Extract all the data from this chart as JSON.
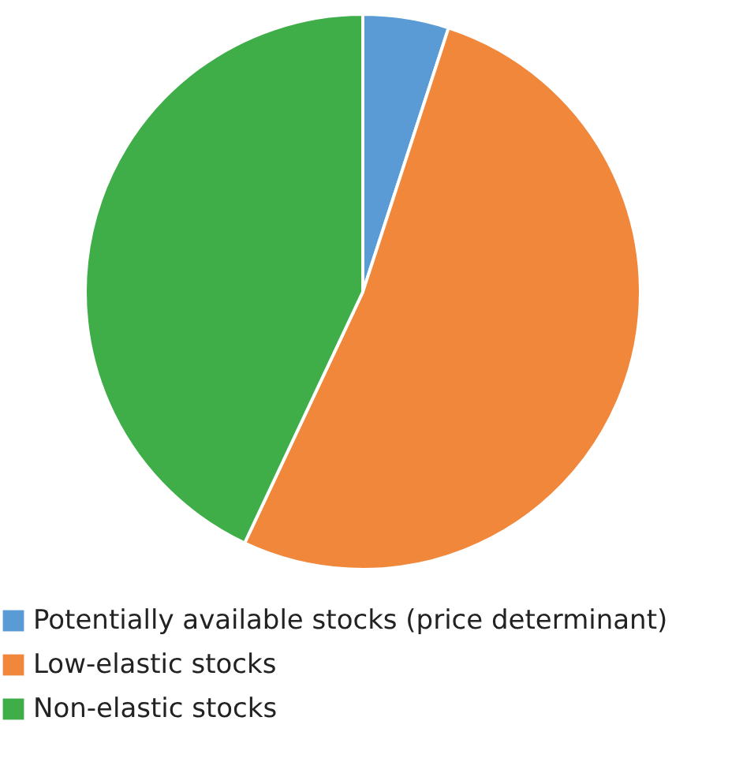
{
  "chart_data": {
    "type": "pie",
    "categories": [
      "Potentially available stocks (price determinant)",
      "Low-elastic stocks",
      "Non-elastic stocks"
    ],
    "values": [
      5,
      52,
      43
    ],
    "colors": [
      "#5b9bd5",
      "#f0873a",
      "#3fae49"
    ],
    "legend": "bottom"
  }
}
